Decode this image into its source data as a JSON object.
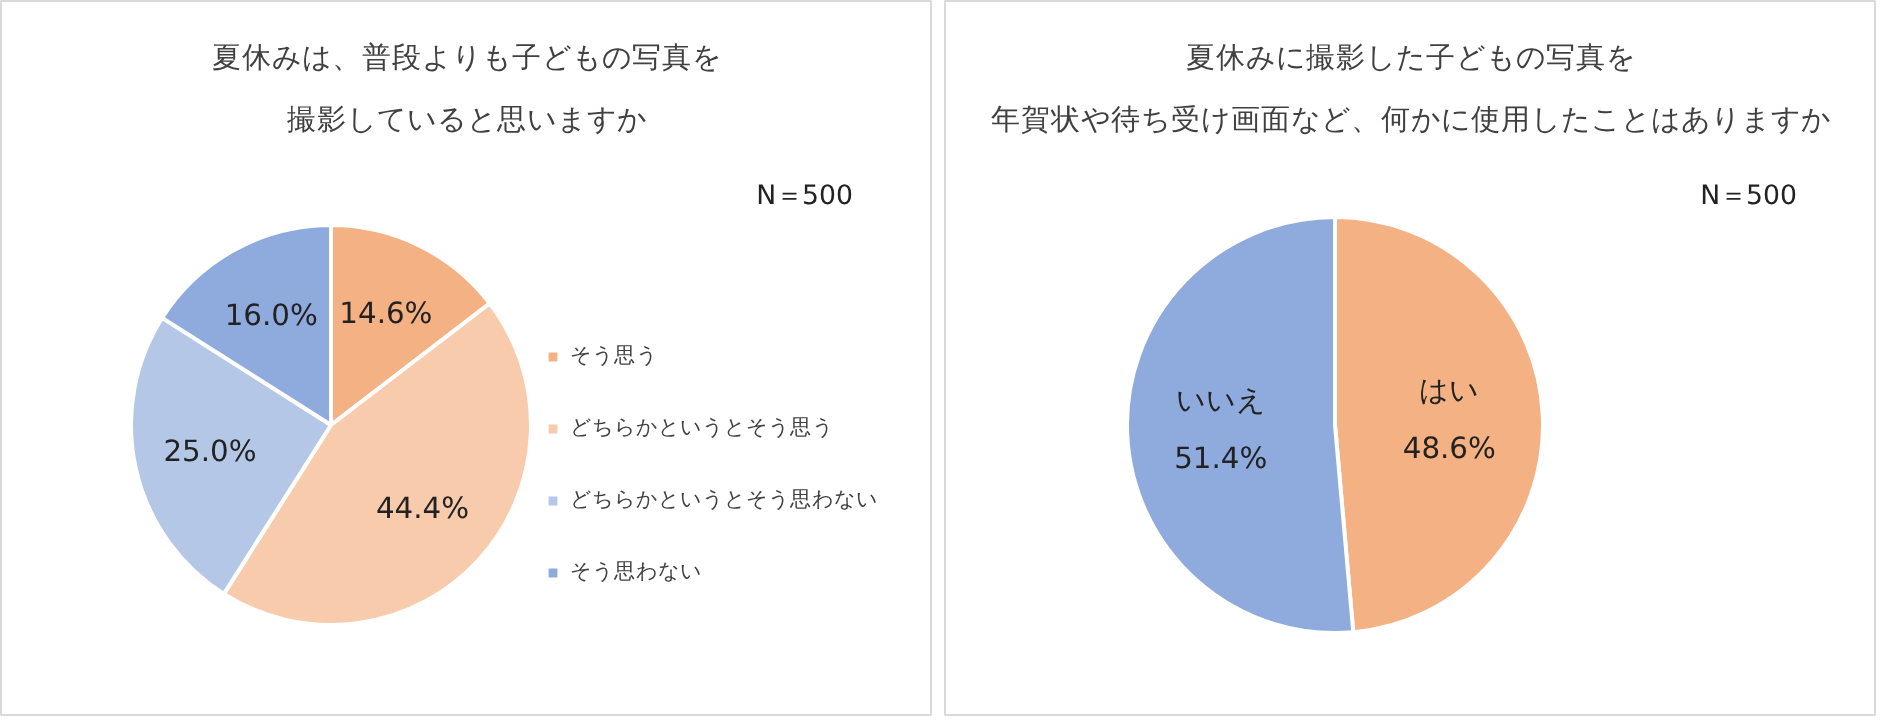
{
  "chart_data": [
    {
      "type": "pie",
      "title": "夏休みは、普段よりも子どもの写真を撮影していると思いますか",
      "categories": [
        "そう思う",
        "どちらかというとそう思う",
        "どちらかというとそう思わない",
        "そう思わない"
      ],
      "values": [
        14.6,
        44.4,
        25.0,
        16.0
      ],
      "colors": [
        "#f4b183",
        "#f8cbad",
        "#b4c7e7",
        "#8faadc"
      ],
      "value_labels": [
        "14.6%",
        "44.4%",
        "25.0%",
        "16.0%"
      ],
      "legend": "right",
      "annotations": [
        "N＝500"
      ]
    },
    {
      "type": "pie",
      "title": "夏休みに撮影した子どもの写真を年賀状や待ち受け画面など、何かに使用したことはありますか",
      "categories": [
        "はい",
        "いいえ"
      ],
      "values": [
        48.6,
        51.4
      ],
      "colors": [
        "#f4b183",
        "#8faadc"
      ],
      "value_labels": [
        "48.6%",
        "51.4%"
      ],
      "legend": false,
      "annotations": [
        "N＝500"
      ]
    }
  ]
}
